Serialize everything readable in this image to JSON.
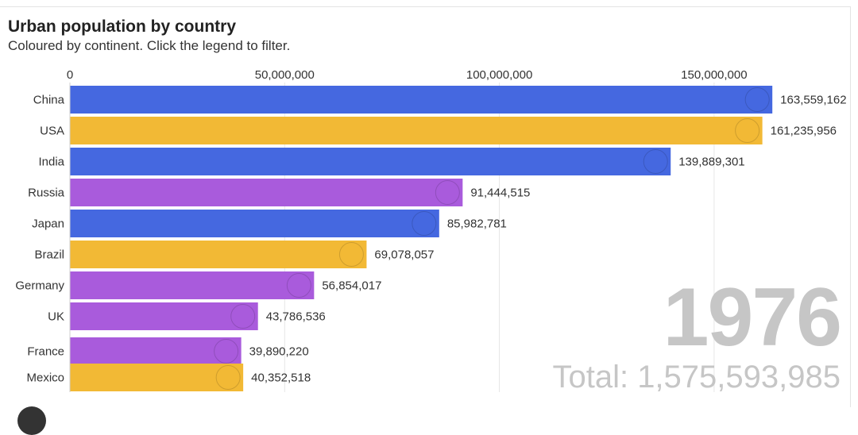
{
  "header": {
    "title": "Urban population by country",
    "subtitle": "Coloured by continent. Click the legend to filter."
  },
  "overlay": {
    "year": "1976",
    "total": "Total: 1,575,593,985"
  },
  "colors": {
    "asia": "#4568e0",
    "americas": "#f2b935",
    "europe": "#a95bdc",
    "grid": "#e6e6e6"
  },
  "chart_data": {
    "type": "bar",
    "orientation": "horizontal",
    "title": "Urban population by country",
    "subtitle": "Coloured by continent. Click the legend to filter.",
    "xlim": [
      0,
      170000000
    ],
    "x_ticks": [
      0,
      50000000,
      100000000,
      150000000
    ],
    "x_tick_labels": [
      "0",
      "50,000,000",
      "100,000,000",
      "150,000,000"
    ],
    "grid": true,
    "categories": [
      "China",
      "USA",
      "India",
      "Russia",
      "Japan",
      "Brazil",
      "Germany",
      "UK",
      "France",
      "Mexico"
    ],
    "values": [
      163559162,
      161235956,
      139889301,
      91444515,
      85982781,
      69078057,
      56854017,
      43786536,
      39890220,
      40352518
    ],
    "value_labels": [
      "163,559,162",
      "161,235,956",
      "139,889,301",
      "91,444,515",
      "85,982,781",
      "69,078,057",
      "56,854,017",
      "43,786,536",
      "39,890,220",
      "40,352,518"
    ],
    "continents": [
      "asia",
      "americas",
      "asia",
      "europe",
      "asia",
      "americas",
      "europe",
      "europe",
      "europe",
      "americas"
    ],
    "flags": [
      "china-flag-icon",
      "usa-flag-icon",
      "india-flag-icon",
      "russia-flag-icon",
      "japan-flag-icon",
      "brazil-flag-icon",
      "germany-flag-icon",
      "uk-flag-icon",
      "france-flag-icon",
      "mexico-flag-icon"
    ]
  }
}
